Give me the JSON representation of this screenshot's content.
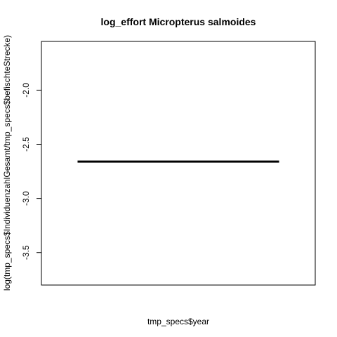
{
  "chart_data": {
    "type": "boxplot",
    "title": "log_effort Micropterus salmoides",
    "xlabel": "tmp_specs$year",
    "ylabel": "log(tmp_specs$IndividuenzahlGesamt/tmp_specs$befischteStrecke)",
    "ylim": [
      -3.8,
      -1.55
    ],
    "yticks": [
      -2.0,
      -2.5,
      -3.0,
      -3.5
    ],
    "ytick_labels": [
      "-2.0",
      "-2.5",
      "-3.0",
      "-3.5"
    ],
    "series": [
      {
        "median": -2.66,
        "q1": -2.66,
        "q3": -2.66,
        "whisker_low": -2.66,
        "whisker_high": -2.66
      }
    ],
    "colors": {
      "line": "#000000",
      "background": "#ffffff"
    },
    "grid": false,
    "legend": "none"
  }
}
